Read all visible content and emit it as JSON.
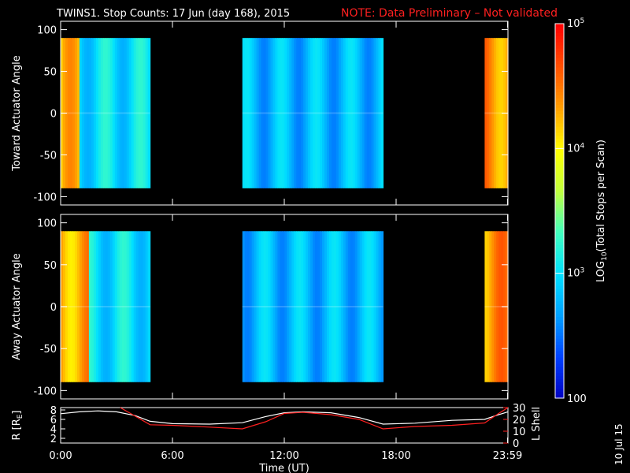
{
  "title": "TWINS1. Stop Counts: 17 Jun (day 168), 2015",
  "note": "NOTE: Data Preliminary – Not validated",
  "stamp": "10 Jul 15",
  "colors": {
    "note": "#ff2020",
    "lshell": "#ff2020",
    "radius": "#ffffff",
    "colormap": [
      "#0000c0",
      "#0040ff",
      "#00a0ff",
      "#00e0ff",
      "#40ffc0",
      "#c0ff40",
      "#ffff00",
      "#ffa000",
      "#ff5000",
      "#ff0000"
    ]
  },
  "chart_data": [
    {
      "type": "heatmap",
      "ylabel": "Toward Actuator Angle",
      "ylim": [
        -110,
        110
      ],
      "yticks": [
        -100,
        -50,
        0,
        50,
        100
      ],
      "xlim": [
        0,
        24
      ],
      "coverage_hours": [
        [
          0.0,
          4.8
        ],
        [
          9.75,
          17.3
        ],
        [
          22.75,
          24.0
        ]
      ],
      "angle_range": [
        -90,
        90
      ],
      "typical_log10_counts": [
        [
          0.0,
          1.0,
          4.2
        ],
        [
          1.0,
          4.8,
          3.0
        ],
        [
          9.75,
          17.3,
          2.8
        ],
        [
          22.75,
          24.0,
          4.4
        ]
      ]
    },
    {
      "type": "heatmap",
      "ylabel": "Away Actuator Angle",
      "ylim": [
        -110,
        110
      ],
      "yticks": [
        -100,
        -50,
        0,
        50,
        100
      ],
      "xlim": [
        0,
        24
      ],
      "coverage_hours": [
        [
          0.0,
          4.8
        ],
        [
          9.75,
          17.3
        ],
        [
          22.75,
          24.0
        ]
      ],
      "angle_range": [
        -90,
        90
      ],
      "typical_log10_counts": [
        [
          0.0,
          1.5,
          4.3
        ],
        [
          1.5,
          4.8,
          3.0
        ],
        [
          9.75,
          17.3,
          2.8
        ],
        [
          22.75,
          24.0,
          4.4
        ]
      ]
    },
    {
      "type": "line",
      "xlabel": "Time (UT)",
      "xticks": [
        "0:00",
        "6:00",
        "12:00",
        "18:00",
        "23:59"
      ],
      "xtick_hours": [
        0,
        6,
        12,
        18,
        23.98
      ],
      "ylabel": "R [R",
      "ylabel_sub": "E",
      "ylabel_end": "]",
      "ylim": [
        1,
        8.5
      ],
      "yticks": [
        "2",
        "4",
        "6",
        "8"
      ],
      "ytick_values": [
        2,
        4,
        6,
        8
      ],
      "y2label": "L Shell",
      "y2lim": [
        0,
        30
      ],
      "y2ticks": [
        "0",
        "10",
        "20",
        "30"
      ],
      "y2tick_values": [
        0,
        10,
        20,
        30
      ],
      "series": [
        {
          "x": [
            0,
            1,
            2,
            3,
            4,
            4.8,
            6,
            8,
            9.75,
            11,
            12,
            13,
            14.5,
            16,
            17.3,
            19,
            21,
            22.75,
            23.5,
            24
          ],
          "y": [
            7.2,
            7.6,
            7.8,
            7.6,
            6.8,
            5.6,
            5.1,
            5.0,
            5.3,
            6.6,
            7.4,
            7.6,
            7.4,
            6.4,
            5.0,
            5.2,
            5.8,
            6.0,
            7.0,
            7.6
          ]
        },
        {
          "axis": "y2",
          "x": [
            3.2,
            4.8,
            6,
            8,
            9.75,
            11,
            12,
            13,
            14.5,
            16,
            17.3,
            19,
            21,
            22.75,
            23.5,
            24
          ],
          "y": [
            30,
            15.5,
            15,
            13.5,
            12,
            18,
            25,
            26,
            24,
            20,
            12,
            14,
            15,
            17,
            25,
            30
          ]
        }
      ]
    }
  ],
  "colorbar": {
    "label_prefix": "LOG",
    "label_sub": "10",
    "label_suffix": "(Total Stops per Scan)",
    "ticks": [
      {
        "base": "10",
        "exp": "5",
        "value": 100000
      },
      {
        "base": "10",
        "exp": "4",
        "value": 10000
      },
      {
        "base": "10",
        "exp": "3",
        "value": 1000
      },
      {
        "base": "100",
        "exp": "",
        "value": 100
      }
    ]
  }
}
